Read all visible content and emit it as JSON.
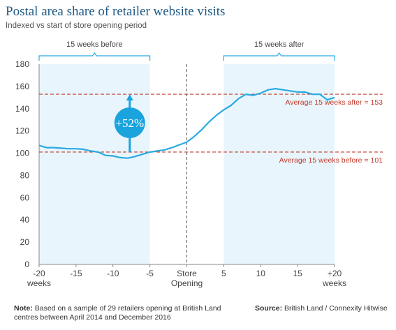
{
  "title": "Postal area share of retailer website visits",
  "subtitle": "Indexed vs start of store opening period",
  "colors": {
    "line": "#29abe2",
    "shade": "#e9f5fc",
    "bracket": "#29abe2",
    "avg": "#c0392b",
    "bubble": "#1aa3dd",
    "axis": "#888888"
  },
  "chart_data": {
    "type": "line",
    "title": "Postal area share of retailer website visits",
    "subtitle": "Indexed vs start of store opening period",
    "xlim": [
      -20,
      20
    ],
    "ylim": [
      0,
      180
    ],
    "yticks": [
      0,
      20,
      40,
      60,
      80,
      100,
      120,
      140,
      160,
      180
    ],
    "xticks": [
      {
        "x": -20,
        "label": "-20",
        "label2": "weeks"
      },
      {
        "x": -15,
        "label": "-15",
        "label2": ""
      },
      {
        "x": -10,
        "label": "-10",
        "label2": ""
      },
      {
        "x": -5,
        "label": "-5",
        "label2": ""
      },
      {
        "x": 0,
        "label": "Store",
        "label2": "Opening"
      },
      {
        "x": 5,
        "label": "5",
        "label2": ""
      },
      {
        "x": 10,
        "label": "10",
        "label2": ""
      },
      {
        "x": 15,
        "label": "15",
        "label2": ""
      },
      {
        "x": 20,
        "label": "+20",
        "label2": "weeks"
      }
    ],
    "series": [
      {
        "x": [
          -20,
          -19,
          -18,
          -17,
          -16,
          -15,
          -14,
          -13,
          -12,
          -11,
          -10,
          -9,
          -8,
          -7,
          -6,
          -5,
          -4,
          -3,
          -2,
          -1,
          0,
          1,
          2,
          3,
          4,
          5,
          6,
          7,
          8,
          9,
          10,
          11,
          12,
          13,
          14,
          15,
          16,
          17,
          18,
          19,
          20
        ],
        "y": [
          107,
          105,
          105,
          104.5,
          104,
          104,
          103.5,
          102,
          101,
          98,
          97.5,
          96,
          95.5,
          97,
          99,
          101,
          102,
          103,
          105,
          107.5,
          110,
          115,
          121,
          128,
          134,
          139,
          143,
          149,
          153,
          152,
          154,
          157,
          158,
          157,
          156,
          155,
          155,
          153,
          153,
          148,
          150
        ]
      }
    ],
    "shaded_regions": [
      {
        "from": -20,
        "to": -5,
        "label": "15 weeks before"
      },
      {
        "from": 5,
        "to": 20,
        "label": "15 weeks after"
      }
    ],
    "reference_lines": [
      {
        "y": 153,
        "label": "Average 15 weeks after = 153"
      },
      {
        "y": 101,
        "label": "Average 15 weeks before = 101"
      }
    ],
    "vertical_line": {
      "x": 0
    },
    "annotation": {
      "x": -6.5,
      "from": 101,
      "to": 153,
      "label": "+52%"
    }
  },
  "footer": {
    "note_label": "Note:",
    "note_text": " Based on a sample of 29 retailers opening at British Land centres between April 2014 and December 2016",
    "source_label": "Source:",
    "source_text": " British Land / Connexity Hitwise"
  }
}
